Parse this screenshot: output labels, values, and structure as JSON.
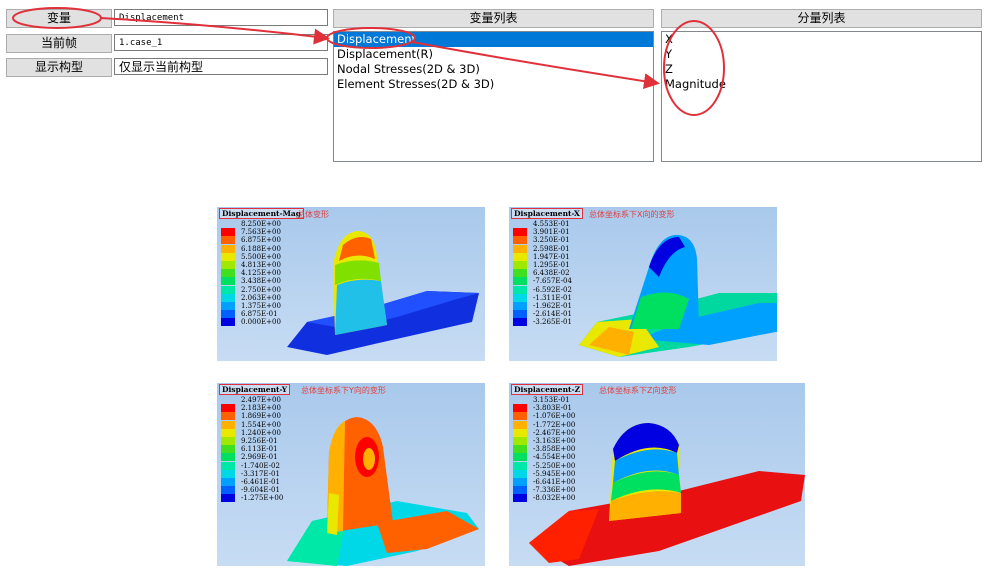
{
  "controls": {
    "variable_button": "变量",
    "variable_value": "Displacement",
    "frame_button": "当前帧",
    "frame_value": "1.case_1",
    "display_button": "显示构型",
    "display_value": "仅显示当前构型"
  },
  "variable_list": {
    "header": "变量列表",
    "items": [
      "Displacement",
      "Displacement(R)",
      "Nodal Stresses(2D & 3D)",
      "Element Stresses(2D & 3D)"
    ],
    "selected_index": 0
  },
  "component_list": {
    "header": "分量列表",
    "items": [
      "X",
      "Y",
      "Z",
      "Magnitude"
    ]
  },
  "colors": {
    "selection": "#0078d7",
    "annotation": "#e0303a",
    "legend": [
      "#0000e0",
      "#0060ff",
      "#00a0ff",
      "#00d8e8",
      "#00e8a8",
      "#00e060",
      "#40e020",
      "#a0e800",
      "#e8e800",
      "#ffb000",
      "#ff6000",
      "#ff0000"
    ]
  },
  "panels": [
    {
      "variable": "Displacement-Mag",
      "note": "总体变形",
      "legend": [
        "8.250E+00",
        "7.563E+00",
        "6.875E+00",
        "6.188E+00",
        "5.500E+00",
        "4.813E+00",
        "4.125E+00",
        "3.438E+00",
        "2.750E+00",
        "2.063E+00",
        "1.375E+00",
        "6.875E-01",
        "0.000E+00"
      ]
    },
    {
      "variable": "Displacement-X",
      "note": "总体坐标系下X向的变形",
      "legend": [
        "4.553E-01",
        "3.901E-01",
        "3.250E-01",
        "2.598E-01",
        "1.947E-01",
        "1.295E-01",
        "6.438E-02",
        "-7.657E-04",
        "-6.592E-02",
        "-1.311E-01",
        "-1.962E-01",
        "-2.614E-01",
        "-3.265E-01"
      ]
    },
    {
      "variable": "Displacement-Y",
      "note": "总体坐标系下Y向的变形",
      "legend": [
        "2.497E+00",
        "2.183E+00",
        "1.869E+00",
        "1.554E+00",
        "1.240E+00",
        "9.256E-01",
        "6.113E-01",
        "2.969E-01",
        "-1.740E-02",
        "-3.317E-01",
        "-6.461E-01",
        "-9.604E-01",
        "-1.275E+00"
      ]
    },
    {
      "variable": "Displacement-Z",
      "note": "总体坐标系下Z向变形",
      "legend": [
        "3.153E-01",
        "-3.803E-01",
        "-1.076E+00",
        "-1.772E+00",
        "-2.467E+00",
        "-3.163E+00",
        "-3.858E+00",
        "-4.554E+00",
        "-5.250E+00",
        "-5.945E+00",
        "-6.641E+00",
        "-7.336E+00",
        "-8.032E+00"
      ]
    }
  ]
}
